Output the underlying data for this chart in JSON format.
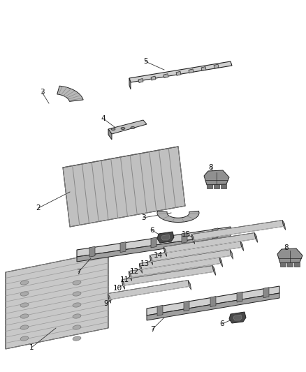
{
  "background_color": "#ffffff",
  "figsize": [
    4.38,
    5.33
  ],
  "dpi": 100,
  "label_fontsize": 7.5,
  "line_color": "#222222",
  "parts_color_light": "#d8d8d8",
  "parts_color_mid": "#b0b0b0",
  "parts_color_dark": "#606060",
  "parts_color_darkest": "#303030"
}
